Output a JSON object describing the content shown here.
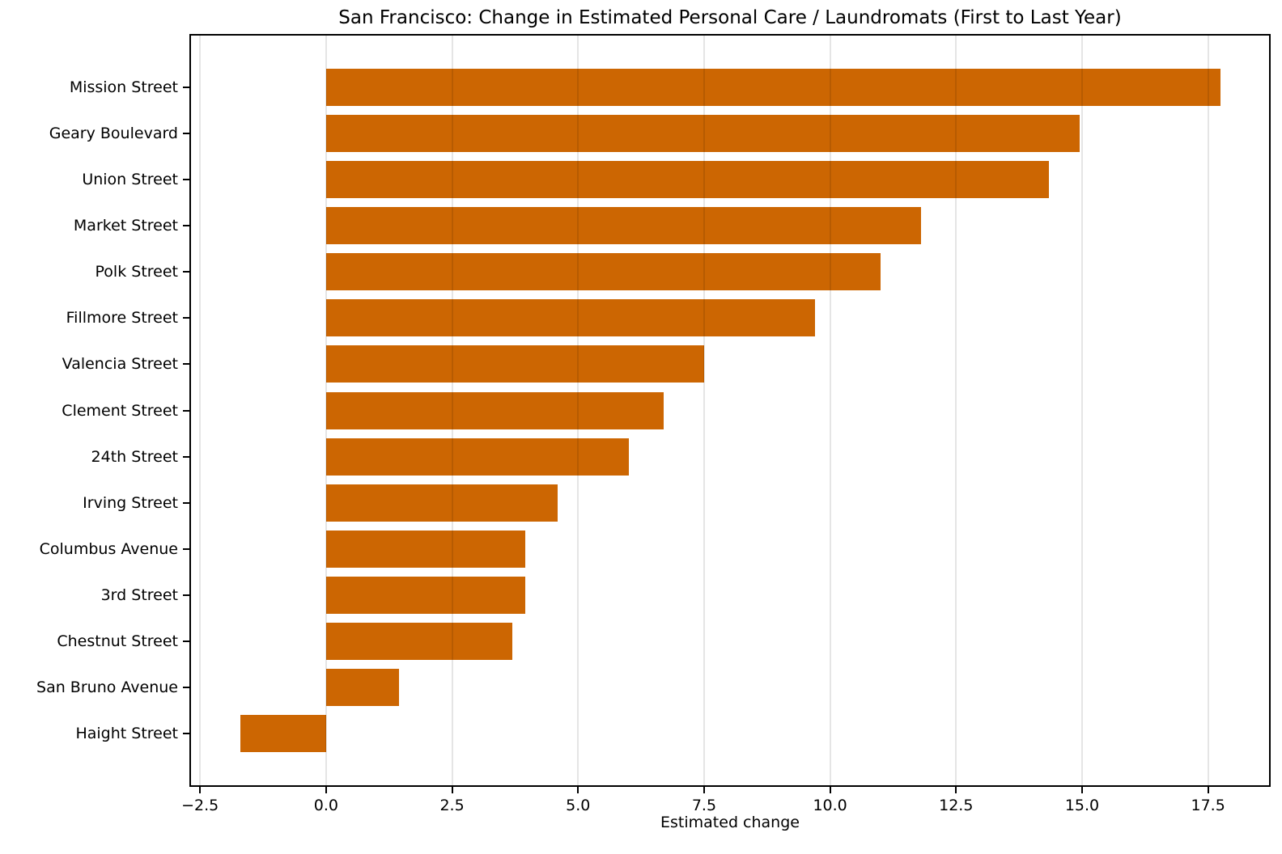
{
  "chart_data": {
    "type": "bar",
    "orientation": "horizontal",
    "title": "San Francisco: Change in Estimated Personal Care / Laundromats (First to Last Year)",
    "xlabel": "Estimated change",
    "ylabel": "",
    "categories": [
      "Mission Street",
      "Geary Boulevard",
      "Union Street",
      "Market Street",
      "Polk Street",
      "Fillmore Street",
      "Valencia Street",
      "Clement Street",
      "24th Street",
      "Irving Street",
      "Columbus Avenue",
      "3rd Street",
      "Chestnut Street",
      "San Bruno Avenue",
      "Haight Street"
    ],
    "values": [
      17.75,
      14.95,
      14.35,
      11.8,
      11.0,
      9.7,
      7.5,
      6.7,
      6.0,
      4.6,
      3.95,
      3.95,
      3.7,
      1.45,
      -1.7
    ],
    "xlim": [
      -2.68,
      18.71
    ],
    "xticks": [
      -2.5,
      0.0,
      2.5,
      5.0,
      7.5,
      10.0,
      12.5,
      15.0,
      17.5
    ],
    "grid": true,
    "legend": "none",
    "bar_color": "#cc6602",
    "grid_color": "rgba(0,0,0,0.10)",
    "axis_color": "#000000",
    "background_color": "#ffffff"
  }
}
